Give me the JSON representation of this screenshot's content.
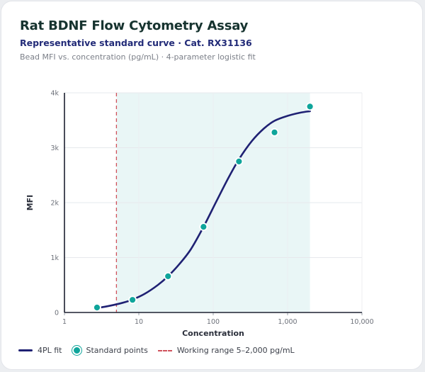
{
  "header": {
    "title": "Rat BDNF Flow Cytometry Assay",
    "subtitle": "Representative standard curve · Cat. RX31136",
    "caption": "Bead MFI vs. concentration (pg/mL) · 4-parameter logistic fit"
  },
  "legend": {
    "fit_label": "4PL fit",
    "points_label": "Standard points",
    "range_label": "Working range 5–2,000 pg/mL"
  },
  "colors": {
    "fit_line": "#1f2173",
    "points": "#0fa59b",
    "range_line": "#d0525c",
    "range_fill": "#e9f6f6"
  },
  "chart_data": {
    "type": "scatter",
    "title": "",
    "xlabel": "Concentration",
    "ylabel": "MFI",
    "x_scale": "log",
    "xlim": [
      1,
      10000
    ],
    "ylim": [
      0,
      4000
    ],
    "x_ticks": [
      1,
      10,
      100,
      1000,
      10000
    ],
    "x_tick_labels": [
      "1",
      "10",
      "100",
      "1,000",
      "10,000"
    ],
    "y_ticks": [
      0,
      1000,
      2000,
      3000,
      4000
    ],
    "y_tick_labels": [
      "0",
      "1k",
      "2k",
      "3k",
      "4k"
    ],
    "grid": true,
    "legend_position": "bottom",
    "working_range": [
      5,
      2000
    ],
    "series": [
      {
        "name": "Standard points",
        "kind": "points",
        "x": [
          2.74,
          8.23,
          24.7,
          74.1,
          222,
          667,
          2000
        ],
        "y": [
          90,
          230,
          660,
          1560,
          2750,
          3280,
          3750
        ]
      },
      {
        "name": "4PL fit",
        "kind": "curve",
        "x": [
          2.74,
          4,
          6,
          8.23,
          12,
          18,
          24.7,
          35,
          50,
          74.1,
          110,
          160,
          222,
          330,
          480,
          667,
          1000,
          1500,
          2000
        ],
        "y": [
          80,
          120,
          175,
          235,
          340,
          500,
          660,
          880,
          1150,
          1560,
          2020,
          2450,
          2790,
          3120,
          3350,
          3490,
          3580,
          3640,
          3665
        ]
      }
    ]
  }
}
